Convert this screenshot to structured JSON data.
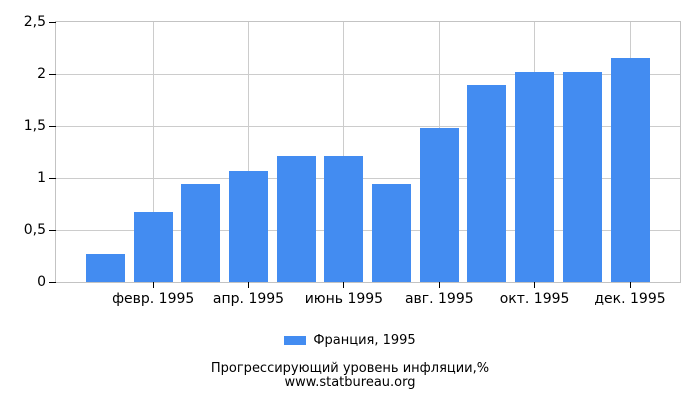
{
  "chart_data": {
    "type": "bar",
    "title": "Прогрессирующий уровень инфляции,%",
    "website": "www.statbureau.org",
    "legend_position": "bottom",
    "grid": true,
    "bar_count": 12,
    "series": [
      {
        "name": "Франция, 1995",
        "color": "#438CF1",
        "values": [
          0.27,
          0.67,
          0.94,
          1.07,
          1.21,
          1.21,
          0.94,
          1.48,
          1.89,
          2.02,
          2.02,
          2.15
        ]
      }
    ],
    "x_ticks": {
      "labels": [
        "февр. 1995",
        "апр. 1995",
        "июнь 1995",
        "авг. 1995",
        "окт. 1995",
        "дек. 1995"
      ],
      "bar_indices": [
        1,
        3,
        5,
        7,
        9,
        11
      ]
    },
    "y_axis": {
      "min": 0,
      "max": 2.5,
      "tick_values": [
        0,
        0.5,
        1,
        1.5,
        2,
        2.5
      ],
      "tick_labels": [
        "0",
        "0,5",
        "1",
        "1,5",
        "2",
        "2,5"
      ]
    },
    "colors": {
      "bar": "#438CF1",
      "gridline": "#cccccc",
      "axis_border": "#c3c3c3",
      "tick": "#000000",
      "text": "#000000"
    }
  }
}
